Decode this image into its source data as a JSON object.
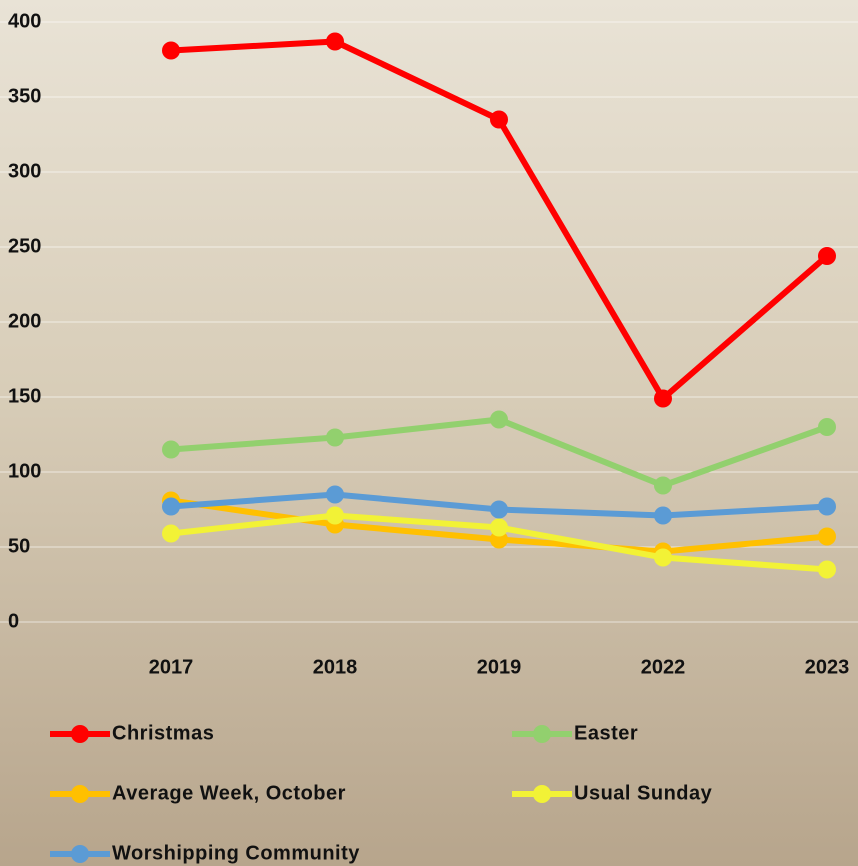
{
  "chart_data": {
    "type": "line",
    "categories": [
      "2017",
      "2018",
      "2019",
      "2022",
      "2023"
    ],
    "series": [
      {
        "name": "Christmas",
        "color": "#ff0000",
        "values": [
          381,
          387,
          335,
          149,
          244
        ]
      },
      {
        "name": "Easter",
        "color": "#92d06e",
        "values": [
          115,
          123,
          135,
          91,
          130
        ]
      },
      {
        "name": "Average Week, October",
        "color": "#ffc000",
        "values": [
          81,
          65,
          55,
          47,
          57
        ]
      },
      {
        "name": "Usual Sunday",
        "color": "#f2f236",
        "values": [
          59,
          71,
          63,
          43,
          35
        ]
      },
      {
        "name": "Worshipping Community",
        "color": "#5b9bd5",
        "values": [
          77,
          85,
          75,
          71,
          77
        ]
      }
    ],
    "ylim": [
      0,
      400
    ],
    "yticks": [
      0,
      50,
      100,
      150,
      200,
      250,
      300,
      350,
      400
    ],
    "grid": true
  }
}
